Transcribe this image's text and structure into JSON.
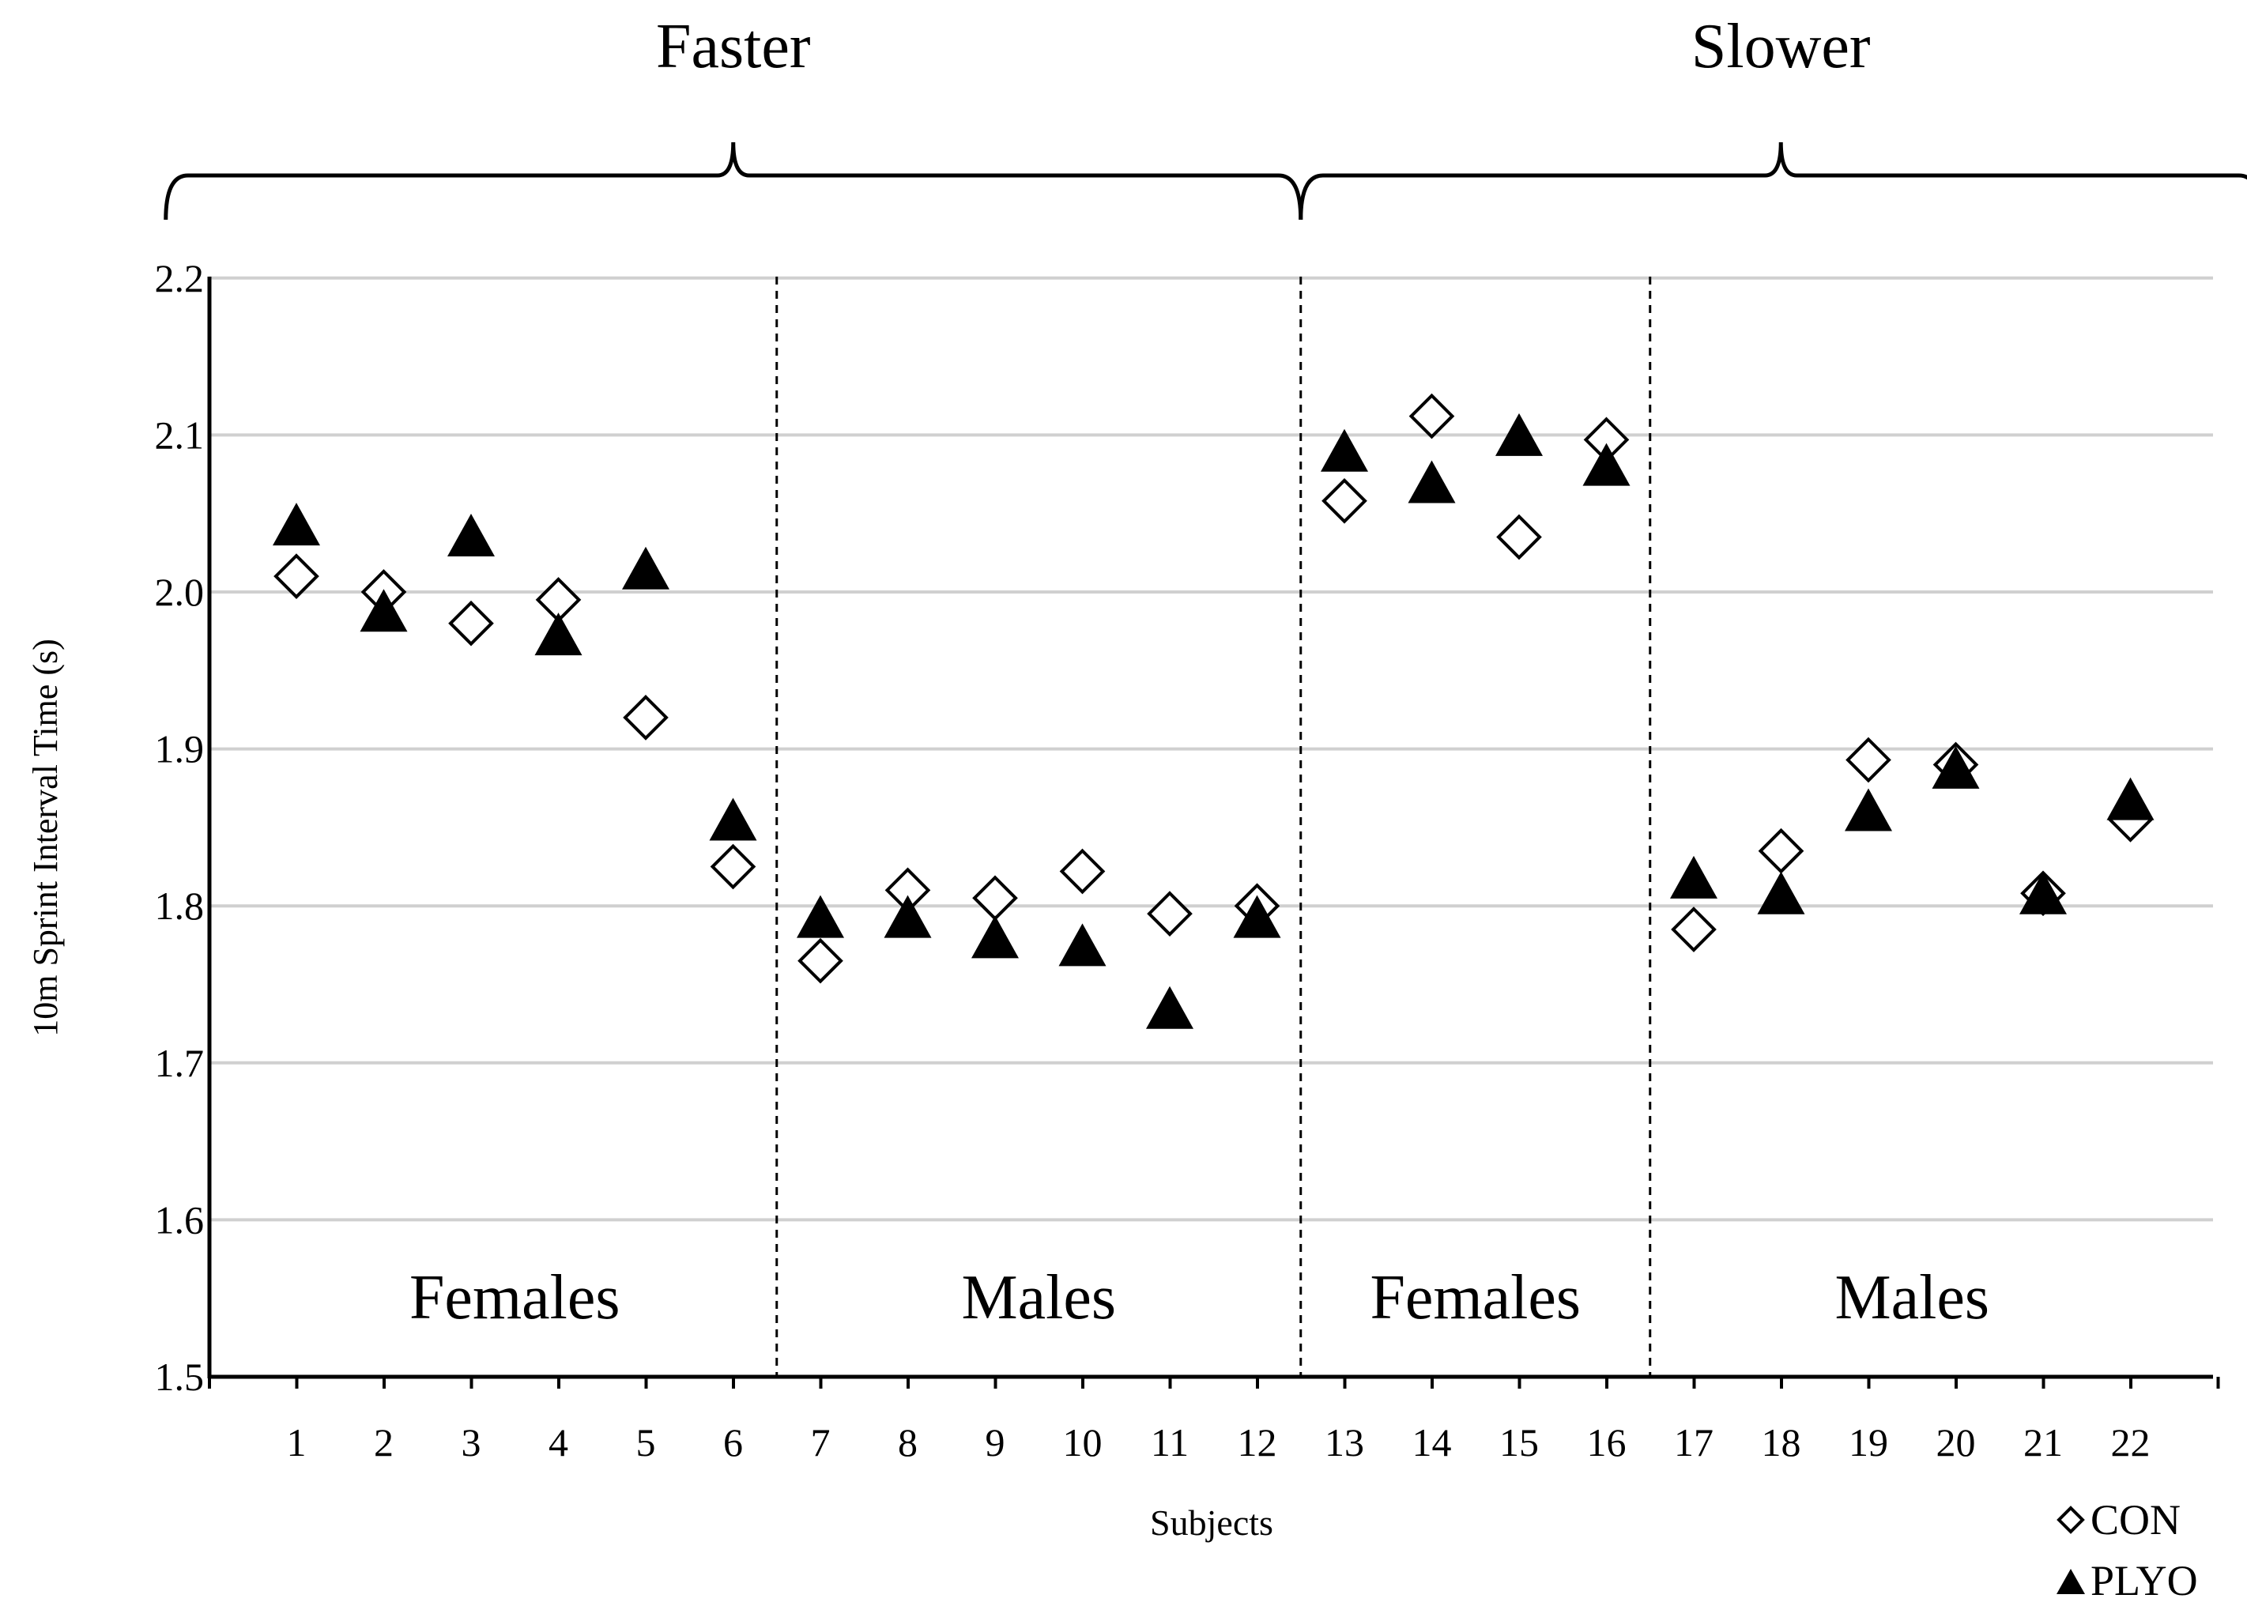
{
  "chart_data": {
    "type": "scatter",
    "title": "",
    "xlabel": "Subjects",
    "ylabel": "10m Sprint Interval Time (s)",
    "ylim": [
      1.5,
      2.2
    ],
    "yticks": [
      "1.5",
      "1.6",
      "1.7",
      "1.8",
      "1.9",
      "2.0",
      "2.1",
      "2.2"
    ],
    "categories": [
      "1",
      "2",
      "3",
      "4",
      "5",
      "6",
      "7",
      "8",
      "9",
      "10",
      "11",
      "12",
      "13",
      "14",
      "15",
      "16",
      "17",
      "18",
      "19",
      "20",
      "21",
      "22"
    ],
    "grid": true,
    "legend_position": "bottom-right",
    "series": [
      {
        "name": "CON",
        "marker": "open-diamond",
        "values": [
          2.01,
          2.0,
          1.98,
          1.995,
          1.92,
          1.825,
          1.765,
          1.81,
          1.805,
          1.822,
          1.795,
          1.8,
          2.058,
          2.112,
          2.035,
          2.097,
          1.785,
          1.835,
          1.893,
          1.89,
          1.808,
          1.855
        ]
      },
      {
        "name": "PLYO",
        "marker": "filled-triangle",
        "values": [
          2.04,
          1.985,
          2.033,
          1.97,
          2.012,
          1.852,
          1.79,
          1.79,
          1.777,
          1.772,
          1.732,
          1.79,
          2.087,
          2.067,
          2.097,
          2.078,
          1.815,
          1.805,
          1.858,
          1.885,
          1.805,
          1.865
        ]
      }
    ],
    "groups": [
      {
        "label": "Faster",
        "from": 1,
        "to": 12
      },
      {
        "label": "Slower",
        "from": 13,
        "to": 22
      }
    ],
    "subgroups": [
      {
        "label": "Females",
        "from": 1,
        "to": 6
      },
      {
        "label": "Males",
        "from": 7,
        "to": 12
      },
      {
        "label": "Females",
        "from": 13,
        "to": 16
      },
      {
        "label": "Males",
        "from": 17,
        "to": 22
      }
    ],
    "colors": {
      "marker": "#000000",
      "grid": "#d0d0d0",
      "axis": "#000000",
      "divider": "#000000"
    }
  }
}
